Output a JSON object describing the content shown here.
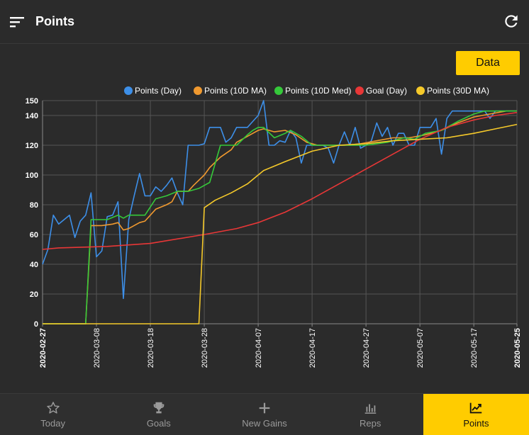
{
  "app": {
    "title": "Points"
  },
  "toolbar": {
    "data_button_label": "Data"
  },
  "nav": {
    "items": [
      {
        "label": "Today",
        "icon": "star-icon"
      },
      {
        "label": "Goals",
        "icon": "trophy-icon"
      },
      {
        "label": "New Gains",
        "icon": "plus-icon"
      },
      {
        "label": "Reps",
        "icon": "bar-chart-icon"
      },
      {
        "label": "Points",
        "icon": "line-chart-icon",
        "active": true
      }
    ]
  },
  "colors": {
    "accent": "#ffcc00",
    "background": "#2b2b2b",
    "series_day": "#3d8fe8",
    "series_10d_ma": "#f0992f",
    "series_10d_med": "#35c93a",
    "series_goal": "#e83737",
    "series_30d_ma": "#f5c92a"
  },
  "chart_data": {
    "type": "line",
    "ylim": [
      0,
      150
    ],
    "y_ticks": [
      0,
      20,
      40,
      60,
      80,
      100,
      120,
      140,
      150
    ],
    "x_start": "2020-02-27",
    "x_end": "2020-05-25",
    "x_ticks": [
      "2020-02-27",
      "2020-03-08",
      "2020-03-18",
      "2020-03-28",
      "2020-04-07",
      "2020-04-17",
      "2020-04-27",
      "2020-05-07",
      "2020-05-17",
      "2020-05-25"
    ],
    "grid": true,
    "legend_position": "top",
    "series": [
      {
        "name": "Points (Day)",
        "color": "#3d8fe8",
        "points": [
          [
            "2020-02-27",
            40
          ],
          [
            "2020-02-28",
            50
          ],
          [
            "2020-02-29",
            73
          ],
          [
            "2020-03-01",
            67
          ],
          [
            "2020-03-02",
            70
          ],
          [
            "2020-03-03",
            73
          ],
          [
            "2020-03-04",
            58
          ],
          [
            "2020-03-05",
            69
          ],
          [
            "2020-03-06",
            73
          ],
          [
            "2020-03-07",
            88
          ],
          [
            "2020-03-08",
            45
          ],
          [
            "2020-03-09",
            49
          ],
          [
            "2020-03-10",
            72
          ],
          [
            "2020-03-11",
            73
          ],
          [
            "2020-03-12",
            82
          ],
          [
            "2020-03-13",
            17
          ],
          [
            "2020-03-14",
            70
          ],
          [
            "2020-03-15",
            86
          ],
          [
            "2020-03-16",
            101
          ],
          [
            "2020-03-17",
            86
          ],
          [
            "2020-03-18",
            86
          ],
          [
            "2020-03-19",
            92
          ],
          [
            "2020-03-20",
            89
          ],
          [
            "2020-03-21",
            93
          ],
          [
            "2020-03-22",
            98
          ],
          [
            "2020-03-23",
            88
          ],
          [
            "2020-03-24",
            80
          ],
          [
            "2020-03-25",
            120
          ],
          [
            "2020-03-26",
            120
          ],
          [
            "2020-03-27",
            120
          ],
          [
            "2020-03-28",
            121
          ],
          [
            "2020-03-29",
            132
          ],
          [
            "2020-03-30",
            132
          ],
          [
            "2020-03-31",
            132
          ],
          [
            "2020-04-01",
            122
          ],
          [
            "2020-04-02",
            125
          ],
          [
            "2020-04-03",
            132
          ],
          [
            "2020-04-04",
            132
          ],
          [
            "2020-04-05",
            132
          ],
          [
            "2020-04-06",
            136
          ],
          [
            "2020-04-07",
            140
          ],
          [
            "2020-04-08",
            150
          ],
          [
            "2020-04-09",
            120
          ],
          [
            "2020-04-10",
            120
          ],
          [
            "2020-04-11",
            123
          ],
          [
            "2020-04-12",
            122
          ],
          [
            "2020-04-13",
            130
          ],
          [
            "2020-04-14",
            125
          ],
          [
            "2020-04-15",
            108
          ],
          [
            "2020-04-16",
            120
          ],
          [
            "2020-04-17",
            120
          ],
          [
            "2020-04-18",
            120
          ],
          [
            "2020-04-19",
            120
          ],
          [
            "2020-04-20",
            118
          ],
          [
            "2020-04-21",
            108
          ],
          [
            "2020-04-22",
            120
          ],
          [
            "2020-04-23",
            129
          ],
          [
            "2020-04-24",
            120
          ],
          [
            "2020-04-25",
            132
          ],
          [
            "2020-04-26",
            118
          ],
          [
            "2020-04-27",
            120
          ],
          [
            "2020-04-28",
            123
          ],
          [
            "2020-04-29",
            135
          ],
          [
            "2020-04-30",
            126
          ],
          [
            "2020-05-01",
            132
          ],
          [
            "2020-05-02",
            120
          ],
          [
            "2020-05-03",
            128
          ],
          [
            "2020-05-04",
            128
          ],
          [
            "2020-05-05",
            120
          ],
          [
            "2020-05-06",
            120
          ],
          [
            "2020-05-07",
            132
          ],
          [
            "2020-05-08",
            132
          ],
          [
            "2020-05-09",
            132
          ],
          [
            "2020-05-10",
            138
          ],
          [
            "2020-05-11",
            114
          ],
          [
            "2020-05-12",
            138
          ],
          [
            "2020-05-13",
            143
          ],
          [
            "2020-05-14",
            143
          ],
          [
            "2020-05-15",
            143
          ],
          [
            "2020-05-16",
            143
          ],
          [
            "2020-05-17",
            143
          ],
          [
            "2020-05-18",
            143
          ],
          [
            "2020-05-19",
            143
          ],
          [
            "2020-05-20",
            138
          ],
          [
            "2020-05-21",
            143
          ],
          [
            "2020-05-22",
            143
          ],
          [
            "2020-05-23",
            143
          ],
          [
            "2020-05-24",
            143
          ],
          [
            "2020-05-25",
            143
          ]
        ]
      },
      {
        "name": "Points (10D MA)",
        "color": "#f0992f",
        "points": [
          [
            "2020-02-27",
            0
          ],
          [
            "2020-03-06",
            0
          ],
          [
            "2020-03-07",
            66
          ],
          [
            "2020-03-09",
            66
          ],
          [
            "2020-03-11",
            67
          ],
          [
            "2020-03-12",
            68
          ],
          [
            "2020-03-13",
            63
          ],
          [
            "2020-03-14",
            64
          ],
          [
            "2020-03-16",
            68
          ],
          [
            "2020-03-17",
            69
          ],
          [
            "2020-03-19",
            77
          ],
          [
            "2020-03-21",
            80
          ],
          [
            "2020-03-22",
            82
          ],
          [
            "2020-03-23",
            89
          ],
          [
            "2020-03-25",
            89
          ],
          [
            "2020-03-26",
            93
          ],
          [
            "2020-03-28",
            100
          ],
          [
            "2020-03-29",
            105
          ],
          [
            "2020-03-31",
            112
          ],
          [
            "2020-04-02",
            117
          ],
          [
            "2020-04-03",
            122
          ],
          [
            "2020-04-05",
            126
          ],
          [
            "2020-04-07",
            130
          ],
          [
            "2020-04-08",
            131
          ],
          [
            "2020-04-10",
            129
          ],
          [
            "2020-04-12",
            130
          ],
          [
            "2020-04-14",
            127
          ],
          [
            "2020-04-16",
            122
          ],
          [
            "2020-04-18",
            120
          ],
          [
            "2020-04-20",
            120
          ],
          [
            "2020-04-23",
            120
          ],
          [
            "2020-04-26",
            121
          ],
          [
            "2020-04-29",
            123
          ],
          [
            "2020-05-02",
            125
          ],
          [
            "2020-05-05",
            125
          ],
          [
            "2020-05-08",
            127
          ],
          [
            "2020-05-11",
            130
          ],
          [
            "2020-05-14",
            135
          ],
          [
            "2020-05-17",
            139
          ],
          [
            "2020-05-20",
            141
          ],
          [
            "2020-05-23",
            143
          ],
          [
            "2020-05-25",
            143
          ]
        ]
      },
      {
        "name": "Points (10D Med)",
        "color": "#35c93a",
        "points": [
          [
            "2020-02-27",
            0
          ],
          [
            "2020-03-06",
            0
          ],
          [
            "2020-03-07",
            70
          ],
          [
            "2020-03-10",
            70
          ],
          [
            "2020-03-12",
            73
          ],
          [
            "2020-03-13",
            71
          ],
          [
            "2020-03-14",
            73
          ],
          [
            "2020-03-17",
            73
          ],
          [
            "2020-03-19",
            84
          ],
          [
            "2020-03-21",
            86
          ],
          [
            "2020-03-23",
            89
          ],
          [
            "2020-03-25",
            89
          ],
          [
            "2020-03-27",
            91
          ],
          [
            "2020-03-28",
            93
          ],
          [
            "2020-03-29",
            95
          ],
          [
            "2020-03-31",
            120
          ],
          [
            "2020-04-03",
            120
          ],
          [
            "2020-04-05",
            127
          ],
          [
            "2020-04-06",
            130
          ],
          [
            "2020-04-07",
            132
          ],
          [
            "2020-04-08",
            132
          ],
          [
            "2020-04-10",
            125
          ],
          [
            "2020-04-12",
            128
          ],
          [
            "2020-04-13",
            130
          ],
          [
            "2020-04-15",
            126
          ],
          [
            "2020-04-17",
            120
          ],
          [
            "2020-04-21",
            120
          ],
          [
            "2020-04-27",
            120
          ],
          [
            "2020-05-01",
            122
          ],
          [
            "2020-05-04",
            125
          ],
          [
            "2020-05-06",
            124
          ],
          [
            "2020-05-08",
            128
          ],
          [
            "2020-05-11",
            130
          ],
          [
            "2020-05-14",
            136
          ],
          [
            "2020-05-17",
            141
          ],
          [
            "2020-05-19",
            143
          ],
          [
            "2020-05-25",
            143
          ]
        ]
      },
      {
        "name": "Goal (Day)",
        "color": "#e83737",
        "points": [
          [
            "2020-02-27",
            50
          ],
          [
            "2020-03-01",
            51
          ],
          [
            "2020-03-10",
            52
          ],
          [
            "2020-03-18",
            54
          ],
          [
            "2020-03-28",
            60
          ],
          [
            "2020-04-03",
            64
          ],
          [
            "2020-04-07",
            68
          ],
          [
            "2020-04-12",
            75
          ],
          [
            "2020-04-17",
            84
          ],
          [
            "2020-04-22",
            94
          ],
          [
            "2020-04-27",
            104
          ],
          [
            "2020-05-02",
            114
          ],
          [
            "2020-05-07",
            124
          ],
          [
            "2020-05-12",
            132
          ],
          [
            "2020-05-17",
            137
          ],
          [
            "2020-05-21",
            140
          ],
          [
            "2020-05-25",
            142
          ]
        ]
      },
      {
        "name": "Points (30D MA)",
        "color": "#f5c92a",
        "points": [
          [
            "2020-02-27",
            0
          ],
          [
            "2020-03-27",
            0
          ],
          [
            "2020-03-28",
            78
          ],
          [
            "2020-03-30",
            83
          ],
          [
            "2020-04-02",
            88
          ],
          [
            "2020-04-05",
            94
          ],
          [
            "2020-04-08",
            103
          ],
          [
            "2020-04-12",
            109
          ],
          [
            "2020-04-17",
            116
          ],
          [
            "2020-04-22",
            120
          ],
          [
            "2020-04-27",
            121
          ],
          [
            "2020-05-02",
            123
          ],
          [
            "2020-05-07",
            124
          ],
          [
            "2020-05-12",
            125
          ],
          [
            "2020-05-17",
            128
          ],
          [
            "2020-05-21",
            131
          ],
          [
            "2020-05-25",
            134
          ]
        ]
      }
    ]
  }
}
